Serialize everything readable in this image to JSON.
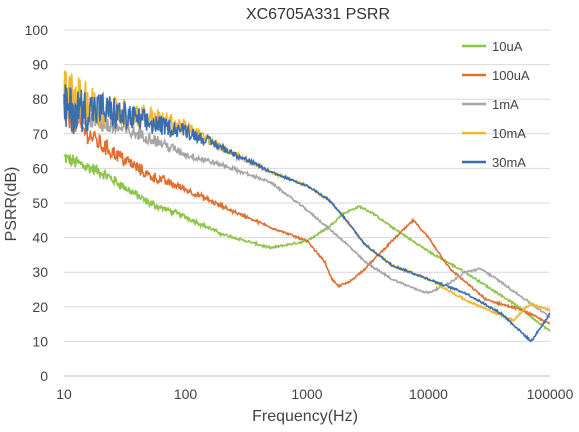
{
  "chart_data": {
    "type": "line",
    "title": "XC6705A331 PSRR",
    "xlabel": "Frequency(Hz)",
    "ylabel": "PSRR(dB)",
    "x_scale": "log",
    "xlim": [
      10,
      100000
    ],
    "ylim": [
      0,
      100
    ],
    "x_ticks": [
      "10",
      "100",
      "1000",
      "10000",
      "100000"
    ],
    "y_ticks": [
      "0",
      "10",
      "20",
      "30",
      "40",
      "50",
      "60",
      "70",
      "80",
      "90",
      "100"
    ],
    "grid": "horizontal",
    "legend_position": "top-right",
    "series": [
      {
        "name": "10uA",
        "color": "#8CC54A",
        "points": [
          [
            10,
            63
          ],
          [
            20,
            59
          ],
          [
            50,
            50
          ],
          [
            100,
            46
          ],
          [
            200,
            41
          ],
          [
            500,
            37
          ],
          [
            1000,
            39
          ],
          [
            1500,
            43
          ],
          [
            2000,
            47
          ],
          [
            2700,
            49
          ],
          [
            3500,
            47
          ],
          [
            5000,
            43
          ],
          [
            10000,
            36
          ],
          [
            20000,
            30
          ],
          [
            50000,
            21
          ],
          [
            100000,
            13
          ]
        ]
      },
      {
        "name": "100uA",
        "color": "#E07030",
        "points": [
          [
            10,
            76
          ],
          [
            20,
            67
          ],
          [
            50,
            58
          ],
          [
            100,
            54
          ],
          [
            200,
            49
          ],
          [
            500,
            43
          ],
          [
            1000,
            39
          ],
          [
            1400,
            33
          ],
          [
            1600,
            28
          ],
          [
            1800,
            26
          ],
          [
            2200,
            27
          ],
          [
            3000,
            31
          ],
          [
            5000,
            39
          ],
          [
            7500,
            45
          ],
          [
            10000,
            40
          ],
          [
            15000,
            31
          ],
          [
            30000,
            22
          ],
          [
            60000,
            19
          ],
          [
            100000,
            15
          ]
        ]
      },
      {
        "name": "1mA",
        "color": "#A6A6A6",
        "points": [
          [
            10,
            79
          ],
          [
            20,
            73
          ],
          [
            50,
            69
          ],
          [
            100,
            64
          ],
          [
            200,
            61
          ],
          [
            500,
            56
          ],
          [
            1000,
            48
          ],
          [
            2000,
            39
          ],
          [
            3000,
            33
          ],
          [
            5000,
            28
          ],
          [
            8000,
            25
          ],
          [
            10000,
            24
          ],
          [
            15000,
            27
          ],
          [
            20000,
            30
          ],
          [
            27000,
            31
          ],
          [
            40000,
            27
          ],
          [
            100000,
            17
          ]
        ]
      },
      {
        "name": "10mA",
        "color": "#F2B730",
        "points": [
          [
            10,
            82
          ],
          [
            20,
            77
          ],
          [
            50,
            75
          ],
          [
            100,
            72
          ],
          [
            200,
            66
          ],
          [
            500,
            59
          ],
          [
            1000,
            55
          ],
          [
            1500,
            51
          ],
          [
            2000,
            46
          ],
          [
            3000,
            38
          ],
          [
            5000,
            32
          ],
          [
            10000,
            28
          ],
          [
            20000,
            22
          ],
          [
            50000,
            16
          ],
          [
            60000,
            19
          ],
          [
            70000,
            21
          ],
          [
            80000,
            20
          ],
          [
            100000,
            19
          ]
        ]
      },
      {
        "name": "30mA",
        "color": "#3A6EB0",
        "points": [
          [
            10,
            77
          ],
          [
            20,
            77
          ],
          [
            50,
            73
          ],
          [
            100,
            71
          ],
          [
            200,
            66
          ],
          [
            500,
            59
          ],
          [
            1000,
            55
          ],
          [
            1500,
            51
          ],
          [
            2000,
            46
          ],
          [
            3000,
            38
          ],
          [
            5000,
            32
          ],
          [
            10000,
            28
          ],
          [
            20000,
            24
          ],
          [
            40000,
            18
          ],
          [
            70000,
            10
          ],
          [
            100000,
            18
          ]
        ]
      }
    ]
  }
}
